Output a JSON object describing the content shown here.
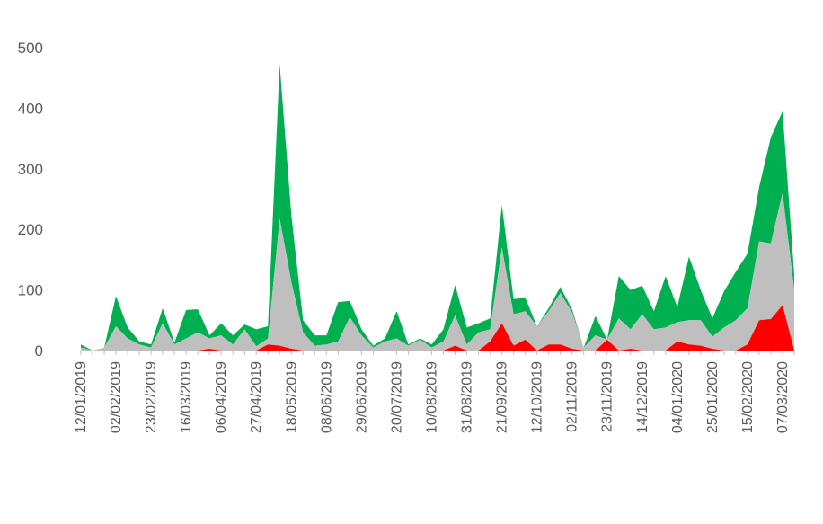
{
  "chart_data": {
    "type": "area",
    "stacked": true,
    "grid": false,
    "legend": "none",
    "ylim": [
      0,
      500
    ],
    "y_ticks": [
      0,
      100,
      200,
      300,
      400,
      500
    ],
    "x_tick_labels": [
      "12/01/2019",
      "02/02/2019",
      "23/02/2019",
      "16/03/2019",
      "06/04/2019",
      "27/04/2019",
      "18/05/2019",
      "08/06/2019",
      "29/06/2019",
      "20/07/2019",
      "10/08/2019",
      "31/08/2019",
      "21/09/2019",
      "12/10/2019",
      "02/11/2019",
      "23/11/2019",
      "14/12/2019",
      "04/01/2020",
      "25/01/2020",
      "15/02/2020",
      "07/03/2020"
    ],
    "x": [
      "12/01/2019",
      "19/01/2019",
      "26/01/2019",
      "02/02/2019",
      "09/02/2019",
      "16/02/2019",
      "23/02/2019",
      "02/03/2019",
      "09/03/2019",
      "16/03/2019",
      "23/03/2019",
      "30/03/2019",
      "06/04/2019",
      "13/04/2019",
      "20/04/2019",
      "27/04/2019",
      "04/05/2019",
      "11/05/2019",
      "18/05/2019",
      "25/05/2019",
      "01/06/2019",
      "08/06/2019",
      "15/06/2019",
      "22/06/2019",
      "29/06/2019",
      "06/07/2019",
      "13/07/2019",
      "20/07/2019",
      "27/07/2019",
      "03/08/2019",
      "10/08/2019",
      "17/08/2019",
      "24/08/2019",
      "31/08/2019",
      "07/09/2019",
      "14/09/2019",
      "21/09/2019",
      "28/09/2019",
      "05/10/2019",
      "12/10/2019",
      "19/10/2019",
      "26/10/2019",
      "02/11/2019",
      "09/11/2019",
      "16/11/2019",
      "23/11/2019",
      "30/11/2019",
      "07/12/2019",
      "14/12/2019",
      "21/12/2019",
      "28/12/2019",
      "04/01/2020",
      "11/01/2020",
      "18/01/2020",
      "25/01/2020",
      "01/02/2020",
      "08/02/2020",
      "15/02/2020",
      "22/02/2020",
      "29/02/2020",
      "07/03/2020",
      "14/03/2020"
    ],
    "series": [
      {
        "color": "#ff0000",
        "values": [
          0,
          0,
          0,
          0,
          0,
          0,
          0,
          0,
          0,
          0,
          0,
          3,
          0,
          0,
          0,
          0,
          10,
          8,
          3,
          0,
          0,
          0,
          0,
          0,
          0,
          0,
          0,
          0,
          0,
          0,
          0,
          0,
          8,
          0,
          0,
          15,
          45,
          8,
          18,
          0,
          10,
          10,
          3,
          0,
          0,
          18,
          0,
          3,
          0,
          0,
          0,
          15,
          10,
          8,
          3,
          0,
          0,
          10,
          50,
          52,
          75,
          0
        ]
      },
      {
        "color": "#bfbfbf",
        "values": [
          5,
          0,
          5,
          40,
          20,
          10,
          5,
          45,
          10,
          20,
          30,
          17,
          25,
          10,
          35,
          7,
          10,
          210,
          110,
          30,
          8,
          10,
          15,
          55,
          25,
          5,
          15,
          20,
          8,
          18,
          5,
          15,
          50,
          10,
          30,
          20,
          125,
          52,
          47,
          40,
          55,
          85,
          60,
          5,
          25,
          0,
          53,
          32,
          60,
          35,
          38,
          32,
          40,
          42,
          20,
          38,
          50,
          60,
          130,
          125,
          185,
          100
        ]
      },
      {
        "color": "#00b050",
        "values": [
          5,
          0,
          0,
          50,
          18,
          5,
          5,
          25,
          3,
          47,
          38,
          5,
          20,
          15,
          8,
          28,
          20,
          255,
          110,
          20,
          17,
          15,
          65,
          27,
          10,
          3,
          5,
          45,
          2,
          2,
          5,
          20,
          50,
          28,
          15,
          18,
          70,
          25,
          22,
          0,
          5,
          10,
          5,
          0,
          32,
          0,
          70,
          65,
          47,
          30,
          85,
          25,
          105,
          50,
          30,
          60,
          80,
          90,
          90,
          175,
          135,
          25
        ]
      }
    ]
  }
}
